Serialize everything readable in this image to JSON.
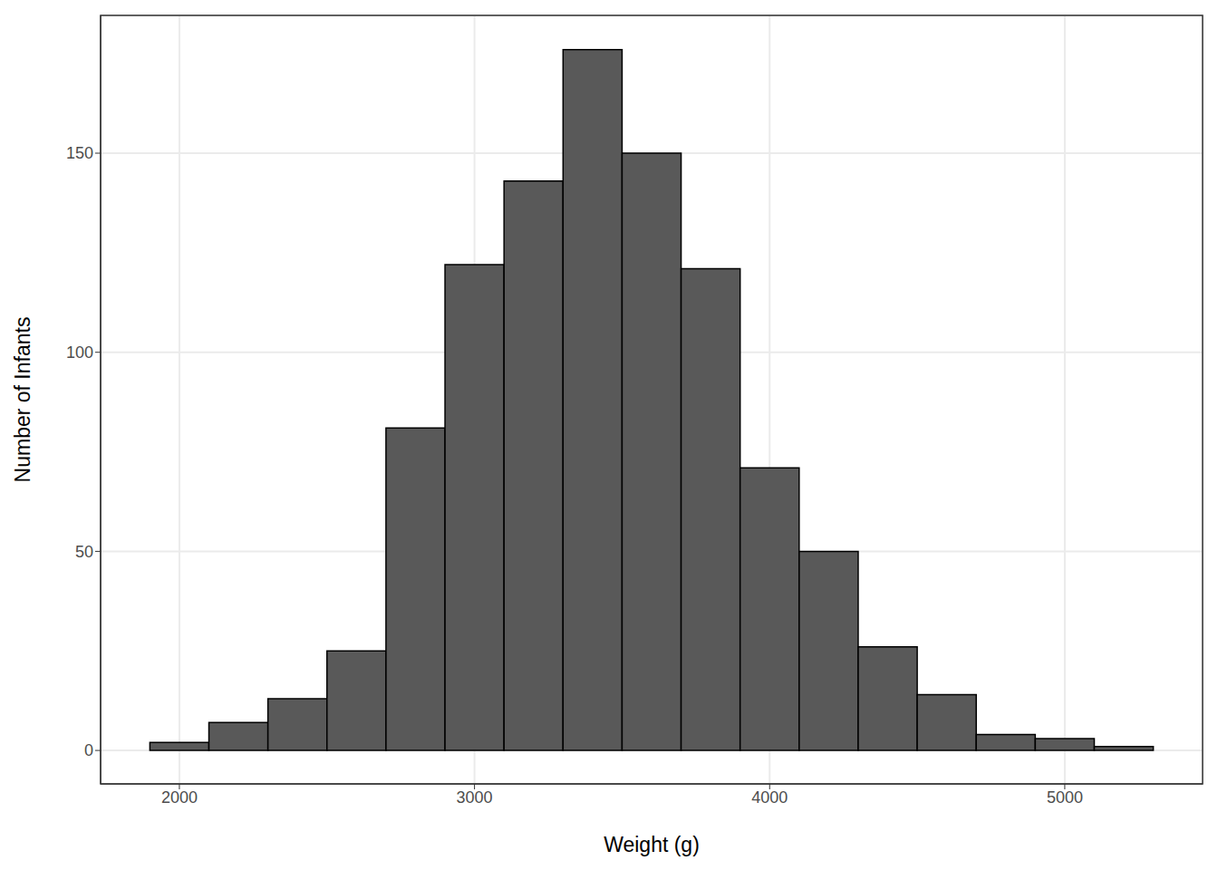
{
  "chart_data": {
    "type": "histogram",
    "xlabel": "Weight (g)",
    "ylabel": "Number of Infants",
    "bins": [
      1900,
      2100,
      2300,
      2500,
      2700,
      2900,
      3100,
      3300,
      3500,
      3700,
      3900,
      4100,
      4300,
      4500,
      4700,
      4900,
      5100,
      5300
    ],
    "counts": [
      2,
      7,
      13,
      25,
      81,
      122,
      143,
      176,
      150,
      121,
      71,
      50,
      26,
      14,
      4,
      3,
      1
    ],
    "color": "#595959",
    "xlim": [
      1733,
      5467
    ],
    "ylim": [
      -8.4,
      184.6
    ],
    "xticks": [
      2000,
      3000,
      4000,
      5000
    ],
    "yticks": [
      0,
      50,
      100,
      150
    ],
    "grid": true
  }
}
